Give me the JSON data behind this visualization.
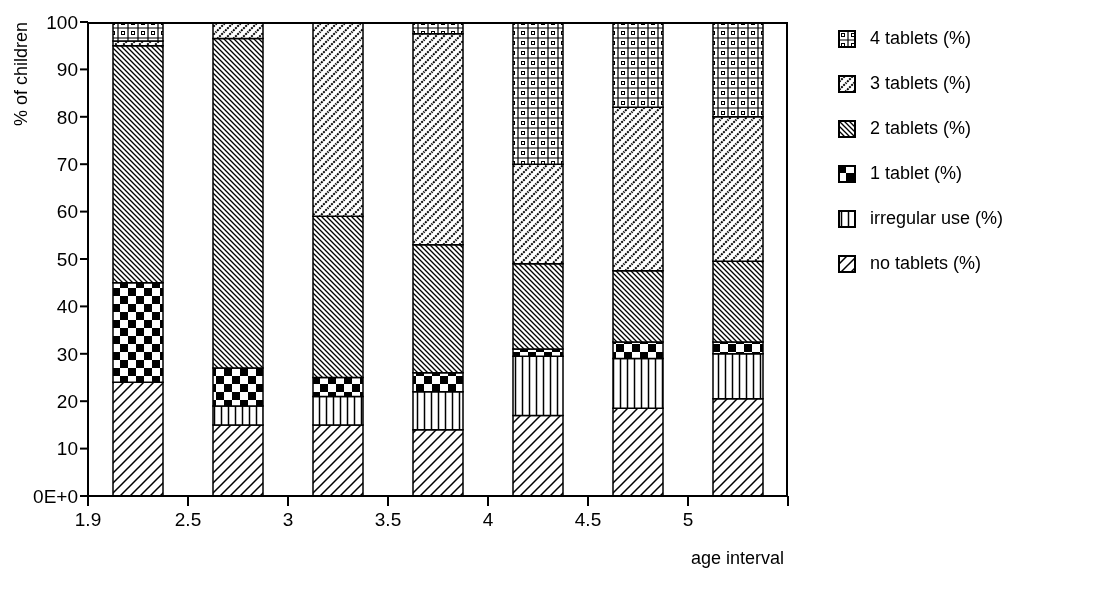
{
  "chart_data": {
    "type": "bar",
    "stacked": true,
    "xlabel": "age interval",
    "ylabel": "% of children",
    "categories": [
      "1.9",
      "2.5",
      "3",
      "3.5",
      "4",
      "4.5",
      "5"
    ],
    "series": [
      {
        "name": "no tablets (%)",
        "color": "#000000",
        "values": [
          24,
          15,
          15,
          14,
          17,
          18.5,
          20.5
        ]
      },
      {
        "name": "irregular use (%)",
        "color": "#000000",
        "values": [
          0,
          4,
          6,
          8,
          12.5,
          10.5,
          9.5
        ]
      },
      {
        "name": "1 tablet (%)",
        "color": "#000000",
        "values": [
          21,
          8,
          4,
          4,
          1.5,
          3.5,
          2.5
        ]
      },
      {
        "name": "2 tablets (%)",
        "color": "#000000",
        "values": [
          50,
          69.5,
          34,
          27,
          18,
          15,
          17
        ]
      },
      {
        "name": "3 tablets (%)",
        "color": "#000000",
        "values": [
          1,
          3.5,
          41,
          44.5,
          21,
          34.5,
          30.5
        ]
      },
      {
        "name": "4 tablets (%)",
        "color": "#000000",
        "values": [
          4,
          0,
          0,
          2.5,
          30,
          18,
          20
        ]
      }
    ],
    "ylim": [
      0,
      100
    ],
    "yticks": [
      {
        "value": 0,
        "label": "0E+0"
      },
      10,
      20,
      30,
      40,
      50,
      60,
      70,
      80,
      90,
      100
    ],
    "grid": false,
    "legend": "right"
  }
}
